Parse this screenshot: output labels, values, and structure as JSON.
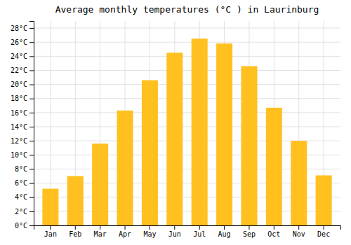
{
  "chart_data": {
    "type": "bar",
    "title": "Average monthly temperatures (°C ) in Laurinburg",
    "categories": [
      "Jan",
      "Feb",
      "Mar",
      "Apr",
      "May",
      "Jun",
      "Jul",
      "Aug",
      "Sep",
      "Oct",
      "Nov",
      "Dec"
    ],
    "values": [
      5.2,
      7.0,
      11.6,
      16.3,
      20.6,
      24.5,
      26.5,
      25.8,
      22.6,
      16.7,
      12.0,
      7.1
    ],
    "color": "#FFC020",
    "ylim": [
      0,
      29
    ],
    "yticks": [
      {
        "value": 0,
        "label": "0°C"
      },
      {
        "value": 2,
        "label": "2°C"
      },
      {
        "value": 4,
        "label": "4°C"
      },
      {
        "value": 6,
        "label": "6°C"
      },
      {
        "value": 8,
        "label": "8°C"
      },
      {
        "value": 10,
        "label": "10°C"
      },
      {
        "value": 12,
        "label": "12°C"
      },
      {
        "value": 14,
        "label": "14°C"
      },
      {
        "value": 16,
        "label": "16°C"
      },
      {
        "value": 18,
        "label": "18°C"
      },
      {
        "value": 20,
        "label": "20°C"
      },
      {
        "value": 22,
        "label": "22°C"
      },
      {
        "value": 24,
        "label": "24°C"
      },
      {
        "value": 26,
        "label": "26°C"
      },
      {
        "value": 28,
        "label": "28°C"
      }
    ],
    "grid": true
  }
}
